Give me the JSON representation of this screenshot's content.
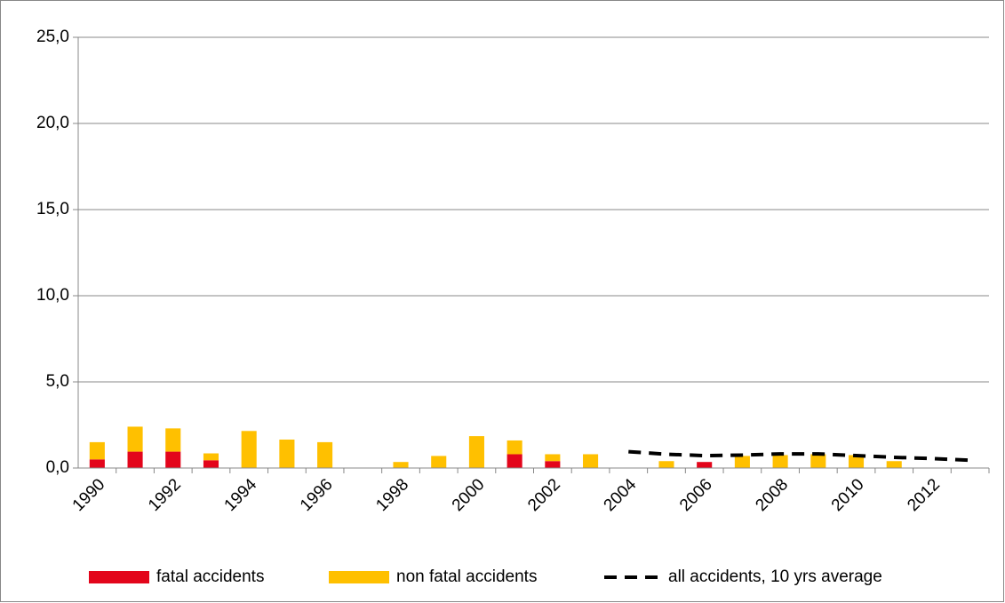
{
  "chart_data": {
    "type": "stacked_bar_line",
    "categories": [
      "1990",
      null,
      "1992",
      null,
      "1994",
      null,
      "1996",
      null,
      "1998",
      null,
      "2000",
      null,
      "2002",
      null,
      "2004",
      null,
      "2006",
      null,
      "2008",
      null,
      "2010",
      null,
      "2012",
      null
    ],
    "series": [
      {
        "name": "fatal accidents",
        "color": "#e3051b",
        "values": [
          0.5,
          0.95,
          0.95,
          0.45,
          0,
          0,
          0,
          0,
          0,
          0,
          0,
          0.8,
          0.4,
          0,
          0,
          0,
          0.35,
          0,
          0,
          0,
          0,
          0,
          0,
          0
        ]
      },
      {
        "name": "non fatal accidents",
        "color": "#ffc000",
        "values": [
          1.0,
          1.45,
          1.35,
          0.4,
          2.15,
          1.65,
          1.5,
          0,
          0.35,
          0.7,
          1.85,
          0.8,
          0.4,
          0.8,
          0,
          0.4,
          0,
          0.7,
          0.75,
          0.8,
          0.75,
          0.4,
          0,
          0
        ]
      },
      {
        "name": "all accidents, 10 yrs average",
        "color": "#000000",
        "line": true,
        "values": [
          null,
          null,
          null,
          null,
          null,
          null,
          null,
          null,
          null,
          null,
          null,
          null,
          null,
          null,
          0.95,
          0.8,
          0.72,
          0.75,
          0.82,
          0.82,
          0.72,
          0.62,
          0.55,
          0.45
        ]
      }
    ],
    "ylim": [
      0,
      25
    ],
    "yticks": [
      {
        "value": 0,
        "label": "0,0"
      },
      {
        "value": 5,
        "label": "5,0"
      },
      {
        "value": 10,
        "label": "10,0"
      },
      {
        "value": 15,
        "label": "15,0"
      },
      {
        "value": 20,
        "label": "20,0"
      },
      {
        "value": 25,
        "label": "25,0"
      }
    ],
    "grid": true,
    "legend": "bottom"
  }
}
